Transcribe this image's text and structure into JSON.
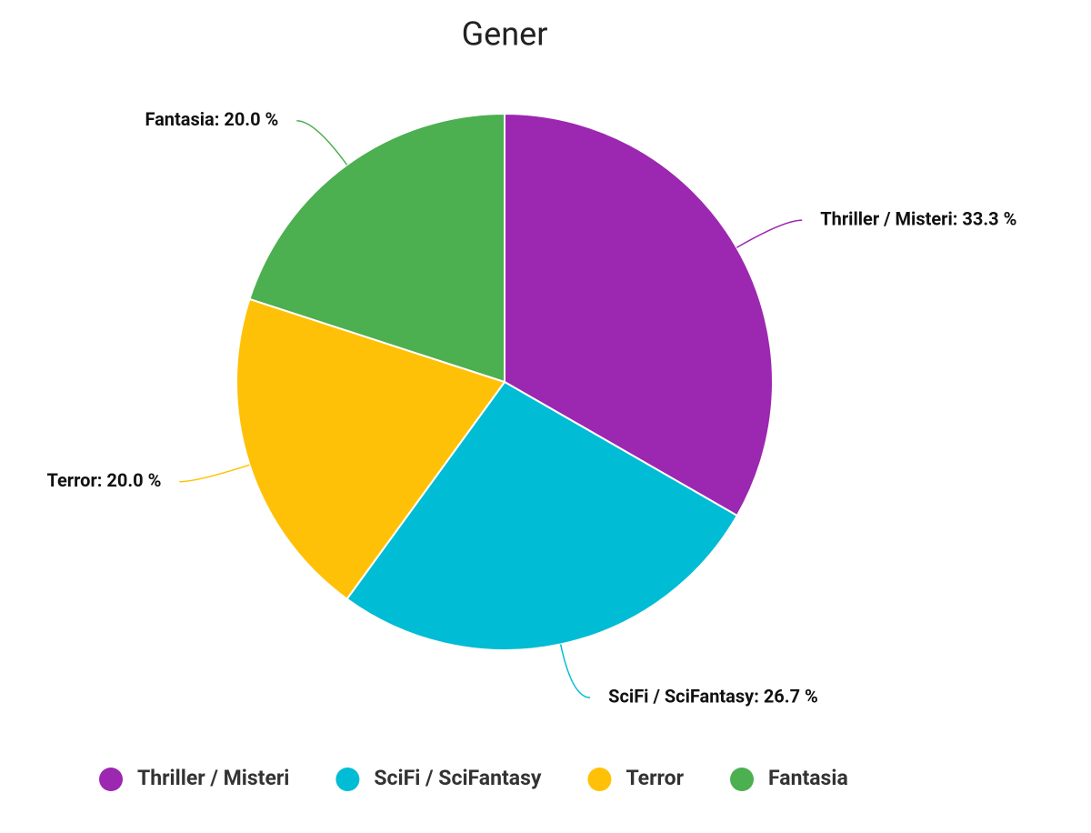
{
  "chart_data": {
    "type": "pie",
    "title": "Gener",
    "categories": [
      "Thriller / Misteri",
      "SciFi / SciFantasy",
      "Terror",
      "Fantasia"
    ],
    "values": [
      33.3,
      26.7,
      20.0,
      20.0
    ],
    "value_labels": [
      "Thriller / Misteri: 33.3 %",
      "SciFi / SciFantasy: 26.7 %",
      "Terror: 20.0 %",
      "Fantasia: 20.0 %"
    ],
    "colors": [
      "#9c27b0",
      "#00bcd4",
      "#ffc107",
      "#4caf50"
    ],
    "legend": "bottom"
  }
}
